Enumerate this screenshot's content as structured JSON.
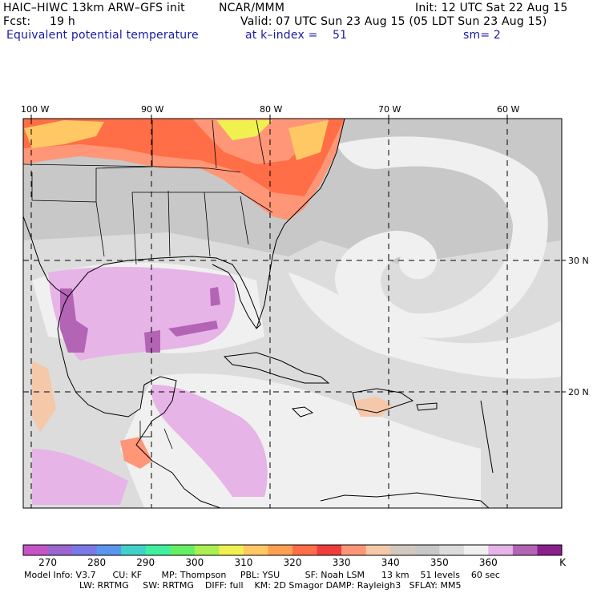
{
  "header": {
    "model_title": "HAIC–HIWC 13km ARW–GFS init",
    "org": "NCAR/MMM",
    "init": "Init: 12 UTC Sat 22 Aug 15",
    "fcst_label": "Fcst:",
    "fcst_value": "19 h",
    "valid": "Valid: 07 UTC Sun 23 Aug 15 (05 LDT Sun 23 Aug 15)",
    "field_name": "Equivalent potential temperature",
    "level": "at k–index =",
    "level_value": "51",
    "smooth": "sm= 2"
  },
  "map": {
    "lon_labels": [
      "100 W",
      "90 W",
      "80 W",
      "70 W",
      "60 W"
    ],
    "lat_labels": [
      "30 N",
      "20 N"
    ]
  },
  "colorbar": {
    "unit": "K",
    "tick_labels": [
      "270",
      "280",
      "290",
      "300",
      "310",
      "320",
      "330",
      "340",
      "350",
      "360"
    ],
    "colors": [
      "#c654c6",
      "#9b66cf",
      "#7a78e6",
      "#5a96f0",
      "#40d2c8",
      "#40f0a0",
      "#64f064",
      "#aaf050",
      "#f0f050",
      "#ffc864",
      "#ffa050",
      "#ff6e46",
      "#f03c3c",
      "#ff9678",
      "#f5c8aa",
      "#d2c8c0",
      "#c8c8c8",
      "#dcdcdc",
      "#f0f0f0",
      "#e6b4e6",
      "#b464b4",
      "#8c1e8c"
    ]
  },
  "footer": {
    "line1": "Model Info: V3.7      CU: KF       MP: Thompson     PBL: YSU         SF: Noah LSM      13 km    51 levels    60 sec",
    "line2": "LW: RRTMG     SW: RRTMG    DIFF: full    KM: 2D Smagor DAMP: Rayleigh3   SFLAY: MM5"
  }
}
